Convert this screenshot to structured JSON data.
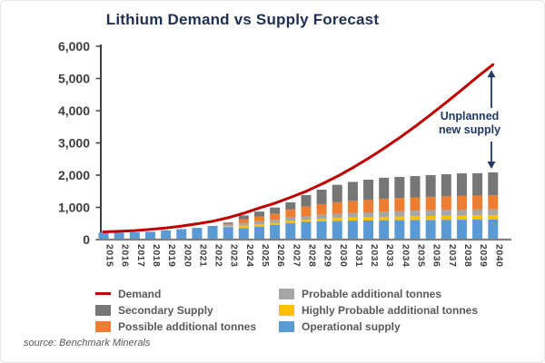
{
  "title": "Lithium Demand vs Supply Forecast",
  "source": "source: Benchmark Minerals",
  "annotation": {
    "line1": "Unplanned",
    "line2": "new supply"
  },
  "colors": {
    "demand_line": "#c00000",
    "secondary_supply": "#767676",
    "possible_additional": "#ed7d31",
    "probable_additional": "#a6a6a6",
    "highly_probable_additional": "#ffc000",
    "operational_supply": "#5b9bd5",
    "annotation_navy": "#1f3864",
    "axis_dark": "#404040",
    "baseline_gray": "#808080",
    "title_navy": "#1f3050"
  },
  "legend": {
    "items": [
      {
        "label": "Demand",
        "color": "#c00000",
        "type": "line"
      },
      {
        "label": "Secondary Supply",
        "color": "#767676",
        "type": "swatch"
      },
      {
        "label": "Possible additional tonnes",
        "color": "#ed7d31",
        "type": "swatch"
      },
      {
        "label": "Probable additional tonnes",
        "color": "#a6a6a6",
        "type": "swatch"
      },
      {
        "label": "Highly Probable additional tonnes",
        "color": "#ffc000",
        "type": "swatch"
      },
      {
        "label": "Operational supply",
        "color": "#5b9bd5",
        "type": "swatch"
      }
    ]
  },
  "chart_data": {
    "type": "bar",
    "subtype": "stacked-bars-with-line",
    "title": "Lithium Demand vs Supply Forecast",
    "xlabel": "",
    "ylabel": "",
    "ylim": [
      0,
      6000
    ],
    "grid": false,
    "legend_position": "bottom",
    "x_label_rotation": "vertical",
    "yticks": [
      {
        "value": 0,
        "label": "0"
      },
      {
        "value": 1000,
        "label": "1,000"
      },
      {
        "value": 2000,
        "label": "2,000"
      },
      {
        "value": 3000,
        "label": "3,000"
      },
      {
        "value": 4000,
        "label": "4,000"
      },
      {
        "value": 5000,
        "label": "5,000"
      },
      {
        "value": 6000,
        "label": "6,000"
      }
    ],
    "categories": [
      "2015",
      "2016",
      "2017",
      "2018",
      "2019",
      "2020",
      "2021",
      "2022",
      "2023",
      "2024",
      "2025",
      "2026",
      "2027",
      "2028",
      "2029",
      "2030",
      "2031",
      "2032",
      "2033",
      "2034",
      "2035",
      "2036",
      "2037",
      "2038",
      "2039",
      "2040"
    ],
    "series": [
      {
        "name": "Operational supply",
        "color": "#5b9bd5",
        "values": [
          215,
          215,
          225,
          245,
          285,
          325,
          365,
          425,
          390,
          360,
          400,
          450,
          510,
          550,
          570,
          580,
          590,
          595,
          600,
          605,
          610,
          612,
          615,
          618,
          620,
          620
        ]
      },
      {
        "name": "Highly Probable additional tonnes",
        "color": "#ffc000",
        "values": [
          0,
          0,
          0,
          0,
          0,
          0,
          0,
          0,
          30,
          75,
          75,
          70,
          70,
          70,
          80,
          90,
          95,
          100,
          105,
          110,
          115,
          120,
          125,
          130,
          132,
          135
        ]
      },
      {
        "name": "Probable additional tonnes",
        "color": "#a6a6a6",
        "values": [
          0,
          0,
          0,
          0,
          0,
          0,
          0,
          0,
          35,
          85,
          95,
          95,
          105,
          110,
          120,
          130,
          140,
          150,
          160,
          165,
          170,
          175,
          178,
          180,
          182,
          185
        ]
      },
      {
        "name": "Possible additional tonnes",
        "color": "#ed7d31",
        "values": [
          0,
          0,
          0,
          0,
          0,
          0,
          0,
          0,
          35,
          115,
          150,
          190,
          250,
          300,
          330,
          360,
          380,
          395,
          405,
          410,
          415,
          420,
          425,
          428,
          430,
          435
        ]
      },
      {
        "name": "Secondary Supply",
        "color": "#767676",
        "values": [
          0,
          0,
          0,
          0,
          0,
          0,
          0,
          0,
          40,
          115,
          150,
          190,
          220,
          350,
          450,
          540,
          585,
          620,
          650,
          655,
          660,
          673,
          687,
          699,
          696,
          710
        ]
      }
    ],
    "line_series": {
      "name": "Demand",
      "color": "#c00000",
      "values": [
        240,
        255,
        280,
        315,
        360,
        420,
        490,
        570,
        680,
        820,
        980,
        1130,
        1310,
        1500,
        1720,
        1960,
        2230,
        2520,
        2830,
        3160,
        3510,
        3880,
        4260,
        4650,
        5050,
        5430
      ]
    },
    "annotation": {
      "text": "Unplanned new supply",
      "between": [
        "Demand 2040",
        "Total supply 2040"
      ]
    }
  }
}
